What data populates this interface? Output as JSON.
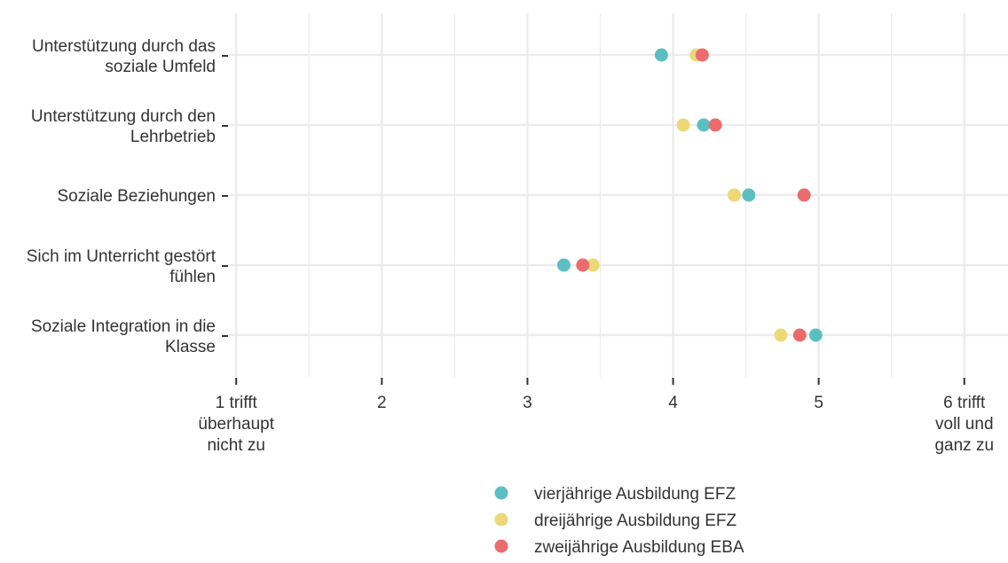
{
  "chart_data": {
    "type": "scatter",
    "orientation": "horizontal-dot-plot",
    "categories": [
      [
        "Unterstützung durch das",
        "soziale Umfeld"
      ],
      [
        "Unterstützung durch den",
        "Lehrbetrieb"
      ],
      [
        "Soziale Beziehungen"
      ],
      [
        "Sich im Unterricht gestört",
        "fühlen"
      ],
      [
        "Soziale Integration in die",
        "Klasse"
      ]
    ],
    "series": [
      {
        "name": "vierjährige Ausbildung EFZ",
        "color": "#5bbfc2",
        "values": [
          3.92,
          4.21,
          4.52,
          3.25,
          4.98
        ]
      },
      {
        "name": "dreijährige Ausbildung EFZ",
        "color": "#ecd876",
        "values": [
          4.16,
          4.07,
          4.42,
          3.45,
          4.74
        ]
      },
      {
        "name": "zweijährige Ausbildung EBA",
        "color": "#ec6b6e",
        "values": [
          4.2,
          4.29,
          4.9,
          3.38,
          4.87
        ]
      }
    ],
    "xlim": [
      0.95,
      6.3
    ],
    "xticks": [
      {
        "value": 1,
        "label": [
          "1 trifft",
          "überhaupt",
          "nicht zu"
        ]
      },
      {
        "value": 2,
        "label": [
          "2"
        ]
      },
      {
        "value": 3,
        "label": [
          "3"
        ]
      },
      {
        "value": 4,
        "label": [
          "4"
        ]
      },
      {
        "value": 5,
        "label": [
          "5"
        ]
      },
      {
        "value": 6,
        "label": [
          "6 trifft",
          "voll und",
          "ganz zu"
        ]
      }
    ],
    "grid": true,
    "legend": "bottom"
  }
}
